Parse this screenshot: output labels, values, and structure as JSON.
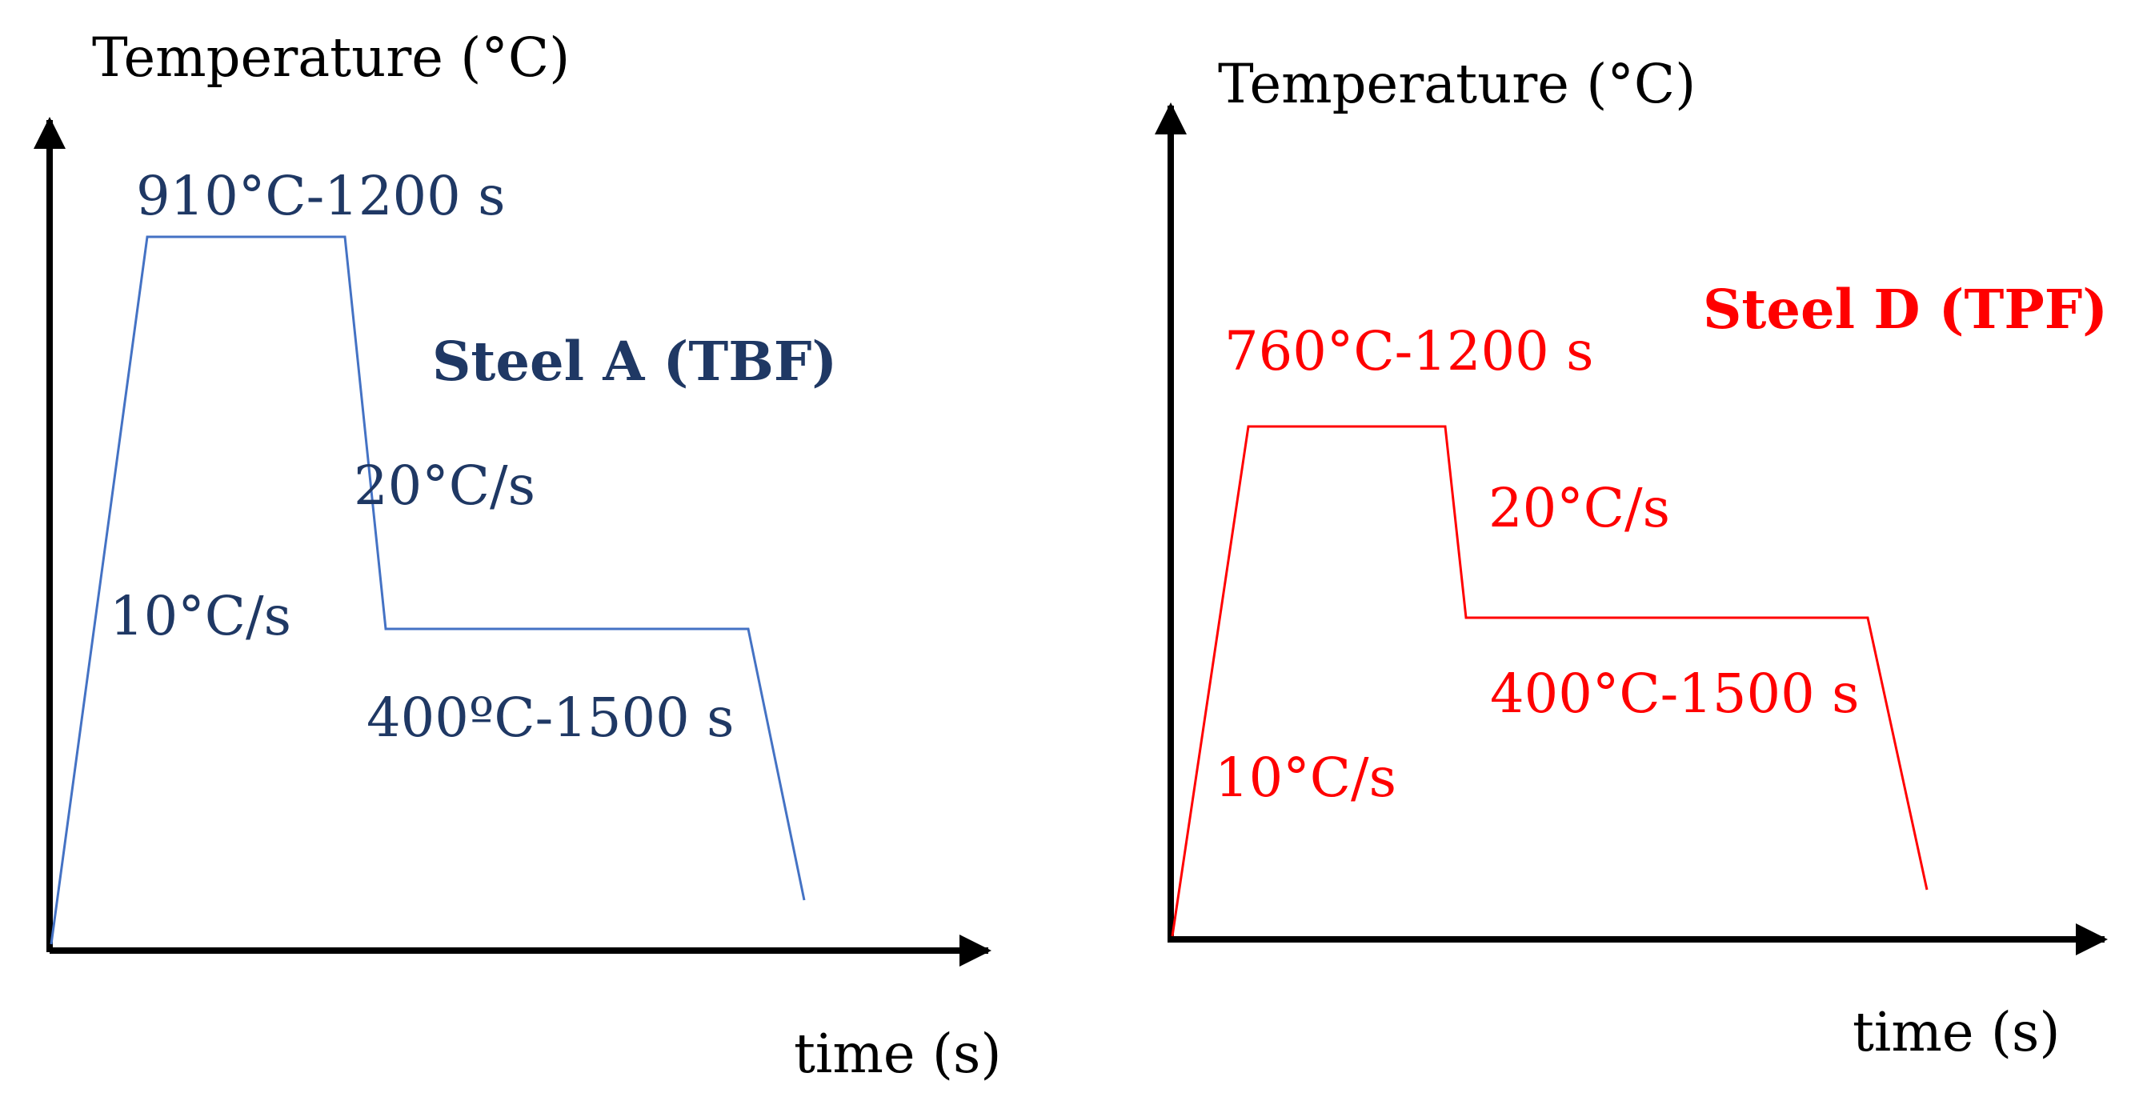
{
  "colors": {
    "axis": "#000000",
    "panel_a_line": "#4472c4",
    "panel_a_text": "#1f3864",
    "panel_d_line": "#ff0000",
    "panel_d_text": "#ff0000"
  },
  "panels": [
    {
      "y_axis_label": "Temperature (°C)",
      "x_axis_label": "time (s)",
      "title": "Steel A (TBF)",
      "annotations": {
        "hold_high": "910°C-1200 s",
        "heating_rate": "10°C/s",
        "cooling_rate": "20°C/s",
        "hold_low": "400ºC-1500 s"
      }
    },
    {
      "y_axis_label": "Temperature (°C)",
      "x_axis_label": "time (s)",
      "title": "Steel D (TPF)",
      "annotations": {
        "hold_high": "760°C-1200 s",
        "heating_rate": "10°C/s",
        "cooling_rate": "20°C/s",
        "hold_low": "400°C-1500 s"
      }
    }
  ]
}
